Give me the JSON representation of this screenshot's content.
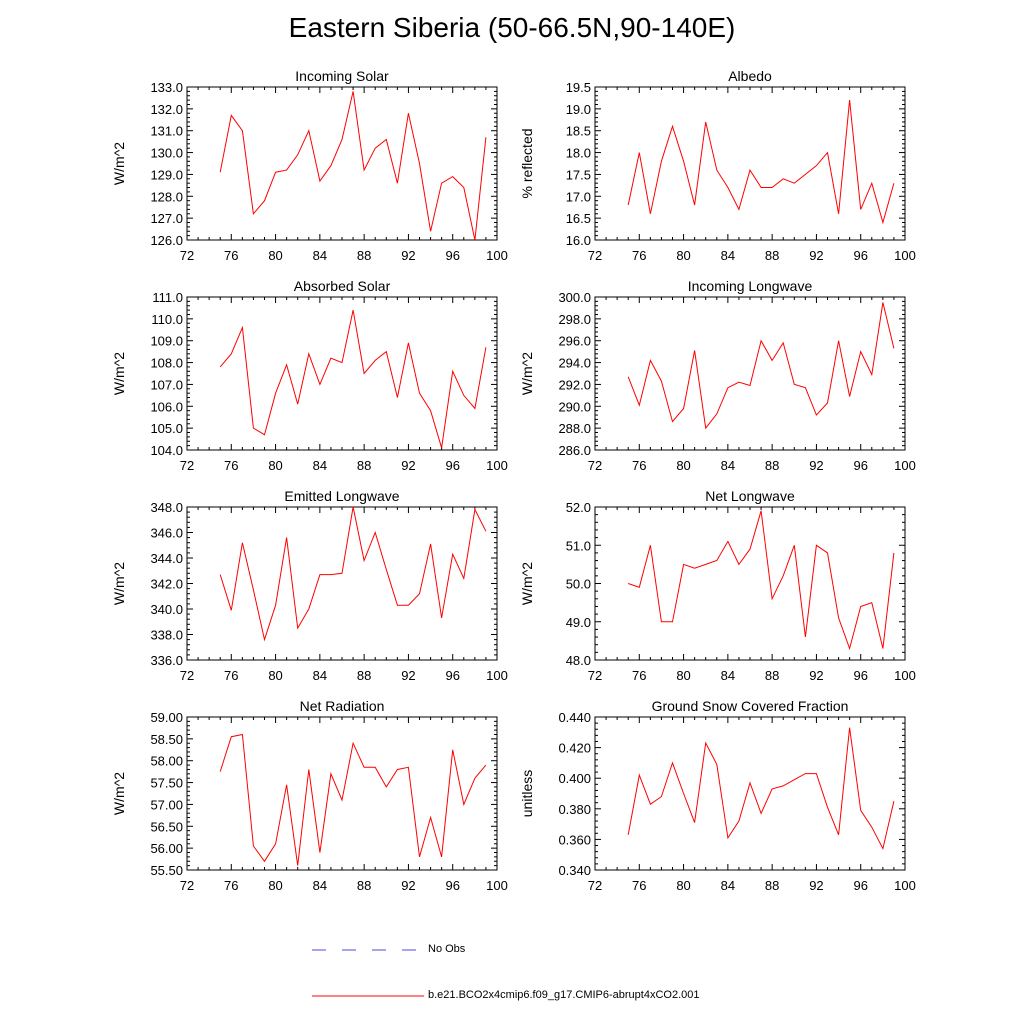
{
  "figure": {
    "title": "Eastern Siberia (50-66.5N,90-140E)",
    "line_color": "#ff0000",
    "obs_color": "#4a4ae0"
  },
  "legend": {
    "obs_label": "No Obs",
    "model_label": "b.e21.BCO2x4cmip6.f09_g17.CMIP6-abrupt4xCO2.001"
  },
  "chart_data": [
    {
      "type": "line",
      "title": "Incoming Solar",
      "ylabel": "W/m^2",
      "xlabel": "",
      "xlim": [
        72,
        100
      ],
      "ylim": [
        126.0,
        133.0
      ],
      "xticks": [
        72,
        76,
        80,
        84,
        88,
        92,
        96,
        100
      ],
      "yticks": [
        "126.0",
        "127.0",
        "128.0",
        "129.0",
        "130.0",
        "131.0",
        "132.0",
        "133.0"
      ],
      "x": [
        75,
        76,
        77,
        78,
        79,
        80,
        81,
        82,
        83,
        84,
        85,
        86,
        87,
        88,
        89,
        90,
        91,
        92,
        93,
        94,
        95,
        96,
        97,
        98,
        99
      ],
      "values": [
        129.1,
        131.7,
        131.0,
        127.2,
        127.8,
        129.1,
        129.2,
        129.9,
        131.0,
        128.7,
        129.4,
        130.6,
        132.8,
        129.2,
        130.2,
        130.6,
        128.6,
        131.8,
        129.5,
        126.4,
        128.6,
        128.9,
        128.4,
        126.0,
        130.7
      ]
    },
    {
      "type": "line",
      "title": "Albedo",
      "ylabel": "% reflected",
      "xlabel": "",
      "xlim": [
        72,
        100
      ],
      "ylim": [
        16.0,
        19.5
      ],
      "xticks": [
        72,
        76,
        80,
        84,
        88,
        92,
        96,
        100
      ],
      "yticks": [
        "16.0",
        "16.5",
        "17.0",
        "17.5",
        "18.0",
        "18.5",
        "19.0",
        "19.5"
      ],
      "x": [
        75,
        76,
        77,
        78,
        79,
        80,
        81,
        82,
        83,
        84,
        85,
        86,
        87,
        88,
        89,
        90,
        91,
        92,
        93,
        94,
        95,
        96,
        97,
        98,
        99
      ],
      "values": [
        16.8,
        18.0,
        16.6,
        17.8,
        18.6,
        17.8,
        16.8,
        18.7,
        17.6,
        17.2,
        16.7,
        17.6,
        17.2,
        17.2,
        17.4,
        17.3,
        17.5,
        17.7,
        18.0,
        16.6,
        19.2,
        16.7,
        17.3,
        16.4,
        17.3
      ]
    },
    {
      "type": "line",
      "title": "Absorbed Solar",
      "ylabel": "W/m^2",
      "xlabel": "",
      "xlim": [
        72,
        100
      ],
      "ylim": [
        104.0,
        111.0
      ],
      "xticks": [
        72,
        76,
        80,
        84,
        88,
        92,
        96,
        100
      ],
      "yticks": [
        "104.0",
        "105.0",
        "106.0",
        "107.0",
        "108.0",
        "109.0",
        "110.0",
        "111.0"
      ],
      "x": [
        75,
        76,
        77,
        78,
        79,
        80,
        81,
        82,
        83,
        84,
        85,
        86,
        87,
        88,
        89,
        90,
        91,
        92,
        93,
        94,
        95,
        96,
        97,
        98,
        99
      ],
      "values": [
        107.8,
        108.4,
        109.6,
        105.0,
        104.7,
        106.6,
        107.9,
        106.1,
        108.4,
        107.0,
        108.2,
        108.0,
        110.4,
        107.5,
        108.1,
        108.5,
        106.4,
        108.9,
        106.6,
        105.8,
        104.1,
        107.6,
        106.5,
        105.9,
        108.7
      ]
    },
    {
      "type": "line",
      "title": "Incoming Longwave",
      "ylabel": "W/m^2",
      "xlabel": "",
      "xlim": [
        72,
        100
      ],
      "ylim": [
        286.0,
        300.0
      ],
      "xticks": [
        72,
        76,
        80,
        84,
        88,
        92,
        96,
        100
      ],
      "yticks": [
        "286.0",
        "288.0",
        "290.0",
        "292.0",
        "294.0",
        "296.0",
        "298.0",
        "300.0"
      ],
      "x": [
        75,
        76,
        77,
        78,
        79,
        80,
        81,
        82,
        83,
        84,
        85,
        86,
        87,
        88,
        89,
        90,
        91,
        92,
        93,
        94,
        95,
        96,
        97,
        98,
        99
      ],
      "values": [
        292.7,
        290.1,
        294.2,
        292.3,
        288.6,
        289.8,
        295.1,
        288.0,
        289.3,
        291.7,
        292.2,
        291.9,
        296.0,
        294.2,
        295.8,
        292.0,
        291.7,
        289.2,
        290.3,
        296.0,
        290.9,
        295.0,
        292.9,
        299.5,
        295.3
      ]
    },
    {
      "type": "line",
      "title": "Emitted Longwave",
      "ylabel": "W/m^2",
      "xlabel": "",
      "xlim": [
        72,
        100
      ],
      "ylim": [
        336.0,
        348.0
      ],
      "xticks": [
        72,
        76,
        80,
        84,
        88,
        92,
        96,
        100
      ],
      "yticks": [
        "336.0",
        "338.0",
        "340.0",
        "342.0",
        "344.0",
        "346.0",
        "348.0"
      ],
      "x": [
        75,
        76,
        77,
        78,
        79,
        80,
        81,
        82,
        83,
        84,
        85,
        86,
        87,
        88,
        89,
        90,
        91,
        92,
        93,
        94,
        95,
        96,
        97,
        98,
        99
      ],
      "values": [
        342.7,
        339.9,
        345.2,
        341.5,
        337.6,
        340.3,
        345.6,
        338.5,
        340.0,
        342.7,
        342.7,
        342.8,
        348.0,
        343.8,
        346.0,
        343.1,
        340.3,
        340.3,
        341.2,
        345.1,
        339.3,
        344.3,
        342.4,
        347.8,
        346.1
      ]
    },
    {
      "type": "line",
      "title": "Net Longwave",
      "ylabel": "W/m^2",
      "xlabel": "",
      "xlim": [
        72,
        100
      ],
      "ylim": [
        48.0,
        52.0
      ],
      "xticks": [
        72,
        76,
        80,
        84,
        88,
        92,
        96,
        100
      ],
      "yticks": [
        "48.0",
        "49.0",
        "50.0",
        "51.0",
        "52.0"
      ],
      "x": [
        75,
        76,
        77,
        78,
        79,
        80,
        81,
        82,
        83,
        84,
        85,
        86,
        87,
        88,
        89,
        90,
        91,
        92,
        93,
        94,
        95,
        96,
        97,
        98,
        99
      ],
      "values": [
        50.0,
        49.9,
        51.0,
        49.0,
        49.0,
        50.5,
        50.4,
        50.5,
        50.6,
        51.1,
        50.5,
        50.9,
        51.9,
        49.6,
        50.2,
        51.0,
        48.6,
        51.0,
        50.8,
        49.1,
        48.3,
        49.4,
        49.5,
        48.3,
        50.8
      ]
    },
    {
      "type": "line",
      "title": "Net Radiation",
      "ylabel": "W/m^2",
      "xlabel": "",
      "xlim": [
        72,
        100
      ],
      "ylim": [
        55.5,
        59.0
      ],
      "xticks": [
        72,
        76,
        80,
        84,
        88,
        92,
        96,
        100
      ],
      "yticks": [
        "55.50",
        "56.00",
        "56.50",
        "57.00",
        "57.50",
        "58.00",
        "58.50",
        "59.00"
      ],
      "x": [
        75,
        76,
        77,
        78,
        79,
        80,
        81,
        82,
        83,
        84,
        85,
        86,
        87,
        88,
        89,
        90,
        91,
        92,
        93,
        94,
        95,
        96,
        97,
        98,
        99
      ],
      "values": [
        57.75,
        58.55,
        58.6,
        56.05,
        55.7,
        56.1,
        57.45,
        55.6,
        57.8,
        55.9,
        57.7,
        57.1,
        58.4,
        57.85,
        57.85,
        57.4,
        57.8,
        57.85,
        55.8,
        56.7,
        55.8,
        58.25,
        57.0,
        57.6,
        57.9
      ]
    },
    {
      "type": "line",
      "title": "Ground Snow Covered Fraction",
      "ylabel": "unitless",
      "xlabel": "",
      "xlim": [
        72,
        100
      ],
      "ylim": [
        0.34,
        0.44
      ],
      "xticks": [
        72,
        76,
        80,
        84,
        88,
        92,
        96,
        100
      ],
      "yticks": [
        "0.340",
        "0.360",
        "0.380",
        "0.400",
        "0.420",
        "0.440"
      ],
      "x": [
        75,
        76,
        77,
        78,
        79,
        80,
        81,
        82,
        83,
        84,
        85,
        86,
        87,
        88,
        89,
        90,
        91,
        92,
        93,
        94,
        95,
        96,
        97,
        98,
        99
      ],
      "values": [
        0.363,
        0.402,
        0.383,
        0.388,
        0.41,
        0.39,
        0.371,
        0.423,
        0.409,
        0.361,
        0.372,
        0.397,
        0.377,
        0.393,
        0.395,
        0.399,
        0.403,
        0.403,
        0.381,
        0.363,
        0.433,
        0.379,
        0.368,
        0.354,
        0.385
      ]
    }
  ]
}
